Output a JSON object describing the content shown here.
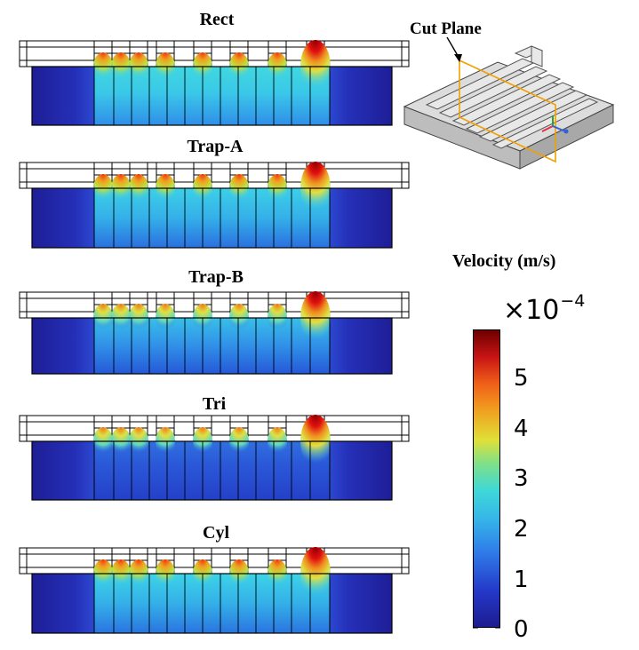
{
  "panels": [
    {
      "title": "Rect",
      "groove_shape": "rectangular"
    },
    {
      "title": "Trap-A",
      "groove_shape": "trapezoidal-a"
    },
    {
      "title": "Trap-B",
      "groove_shape": "trapezoidal-b"
    },
    {
      "title": "Tri",
      "groove_shape": "triangular"
    },
    {
      "title": "Cyl",
      "groove_shape": "cylindrical"
    }
  ],
  "inset": {
    "label": "Cut Plane"
  },
  "colorbar": {
    "title": "Velocity (m/s)",
    "exponent_prefix": "×10",
    "exponent": "−4",
    "min": 0,
    "max": 5.9,
    "ticks": [
      {
        "value": 0,
        "label": "0"
      },
      {
        "value": 1,
        "label": "1"
      },
      {
        "value": 2,
        "label": "2"
      },
      {
        "value": 3,
        "label": "3"
      },
      {
        "value": 4,
        "label": "4"
      },
      {
        "value": 5,
        "label": "5"
      }
    ],
    "colors": {
      "dark_blue": "#1c1c8f",
      "blue": "#2f5fe0",
      "cyan": "#3fd8e0",
      "yellow": "#e8e838",
      "orange": "#f08020",
      "red": "#c81414",
      "dark_red": "#7a0000"
    }
  }
}
